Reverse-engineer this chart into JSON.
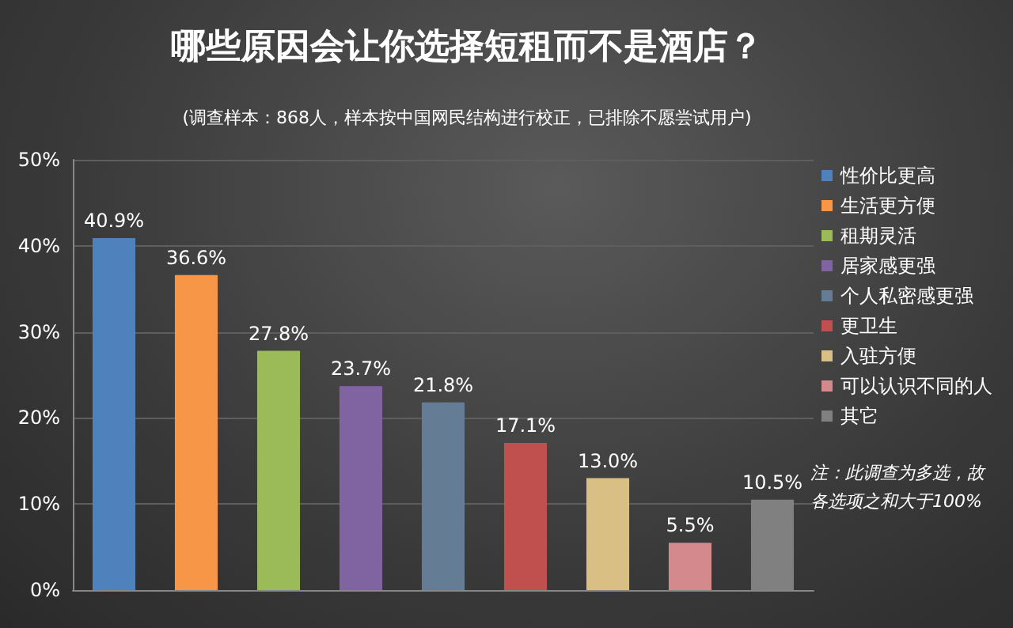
{
  "chart_data": {
    "type": "bar",
    "title": "哪些原因会让你选择短租而不是酒店？",
    "subtitle": "(调查样本：868人，样本按中国网民结构进行校正，已排除不愿尝试用户)",
    "categories": [
      null,
      null,
      null,
      null,
      null,
      null,
      null,
      null,
      null
    ],
    "series": [
      {
        "name": "性价比更高",
        "color": "#4f81bd",
        "values": [
          40.9,
          null,
          null,
          null,
          null,
          null,
          null,
          null,
          null
        ],
        "value_labels": [
          "40.9%",
          null,
          null,
          null,
          null,
          null,
          null,
          null,
          null
        ]
      },
      {
        "name": "生活更方便",
        "color": "#f79646",
        "values": [
          null,
          36.6,
          null,
          null,
          null,
          null,
          null,
          null,
          null
        ],
        "value_labels": [
          null,
          "36.6%",
          null,
          null,
          null,
          null,
          null,
          null,
          null
        ]
      },
      {
        "name": "租期灵活",
        "color": "#9bbb59",
        "values": [
          null,
          null,
          27.8,
          null,
          null,
          null,
          null,
          null,
          null
        ],
        "value_labels": [
          null,
          null,
          "27.8%",
          null,
          null,
          null,
          null,
          null,
          null
        ]
      },
      {
        "name": "居家感更强",
        "color": "#8064a2",
        "values": [
          null,
          null,
          null,
          23.7,
          null,
          null,
          null,
          null,
          null
        ],
        "value_labels": [
          null,
          null,
          null,
          "23.7%",
          null,
          null,
          null,
          null,
          null
        ]
      },
      {
        "name": "个人私密感更强",
        "color": "#647d94",
        "values": [
          null,
          null,
          null,
          null,
          21.8,
          null,
          null,
          null,
          null
        ],
        "value_labels": [
          null,
          null,
          null,
          null,
          "21.8%",
          null,
          null,
          null,
          null
        ]
      },
      {
        "name": "更卫生",
        "color": "#c0504d",
        "values": [
          null,
          null,
          null,
          null,
          null,
          17.1,
          null,
          null,
          null
        ],
        "value_labels": [
          null,
          null,
          null,
          null,
          null,
          "17.1%",
          null,
          null,
          null
        ]
      },
      {
        "name": "入驻方便",
        "color": "#d9bf84",
        "values": [
          null,
          null,
          null,
          null,
          null,
          null,
          13.0,
          null,
          null
        ],
        "value_labels": [
          null,
          null,
          null,
          null,
          null,
          null,
          "13.0%",
          null,
          null
        ]
      },
      {
        "name": "可以认识不同的人",
        "color": "#d48a8c",
        "values": [
          null,
          null,
          null,
          null,
          null,
          null,
          null,
          5.5,
          null
        ],
        "value_labels": [
          null,
          null,
          null,
          null,
          null,
          null,
          null,
          "5.5%",
          null
        ]
      },
      {
        "name": "其它",
        "color": "#808080",
        "values": [
          null,
          null,
          null,
          null,
          null,
          null,
          null,
          null,
          10.5
        ],
        "value_labels": [
          null,
          null,
          null,
          null,
          null,
          null,
          null,
          null,
          "10.5%"
        ]
      }
    ],
    "ylim": [
      0,
      50
    ],
    "yticks": [
      {
        "value": 0,
        "label": "0%"
      },
      {
        "value": 10,
        "label": "10%"
      },
      {
        "value": 20,
        "label": "20%"
      },
      {
        "value": 30,
        "label": "30%"
      },
      {
        "value": 40,
        "label": "40%"
      },
      {
        "value": 50,
        "label": "50%"
      }
    ],
    "grid": "y",
    "legend": "right",
    "annotations": [
      "注：此调查为多选，故各选项之和大于100%"
    ]
  }
}
